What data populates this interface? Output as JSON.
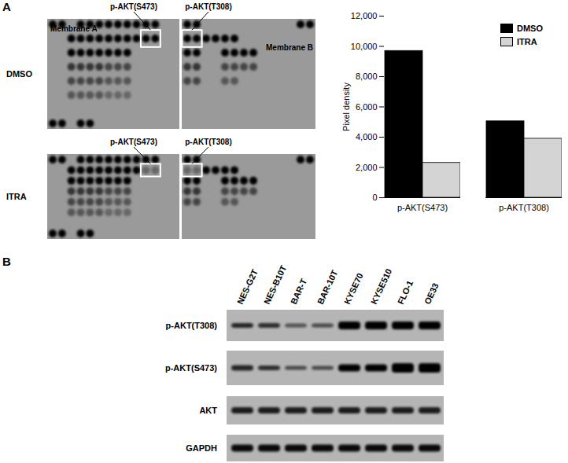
{
  "panel_labels": [
    "A",
    "B"
  ],
  "dot_blot": {
    "conditions": [
      "DMSO",
      "ITRA"
    ],
    "membranes": [
      "Membrane A",
      "Membrane B"
    ],
    "callouts": [
      "p-AKT(S473)",
      "p-AKT(T308)"
    ]
  },
  "chart_data": {
    "type": "bar",
    "categories": [
      "p-AKT(S473)",
      "p-AKT(T308)"
    ],
    "series": [
      {
        "name": "DMSO",
        "color": "#000000",
        "values": [
          9700,
          5050
        ]
      },
      {
        "name": "ITRA",
        "color": "#d4d4d4",
        "values": [
          2300,
          3900
        ]
      }
    ],
    "ylabel": "Pixel density",
    "ylim": [
      0,
      12000
    ],
    "yticks": [
      0,
      {
        "value": 2000,
        "label": "2,000"
      },
      {
        "value": 4000,
        "label": "4,000"
      },
      {
        "value": 6000,
        "label": "6,000"
      },
      {
        "value": 8000,
        "label": "8,000"
      },
      {
        "value": 10000,
        "label": "10,000"
      },
      {
        "value": 12000,
        "label": "12,000"
      }
    ],
    "legend": "upper right",
    "grid": false
  },
  "western_blot": {
    "lanes": [
      "NES-G2T",
      "NES-B10T",
      "BAR-T",
      "BAR-10T",
      "KYSE70",
      "KYSE510",
      "FLO-1",
      "OE33"
    ],
    "rows": [
      "p-AKT(T308)",
      "p-AKT(S473)",
      "AKT",
      "GAPDH"
    ]
  }
}
